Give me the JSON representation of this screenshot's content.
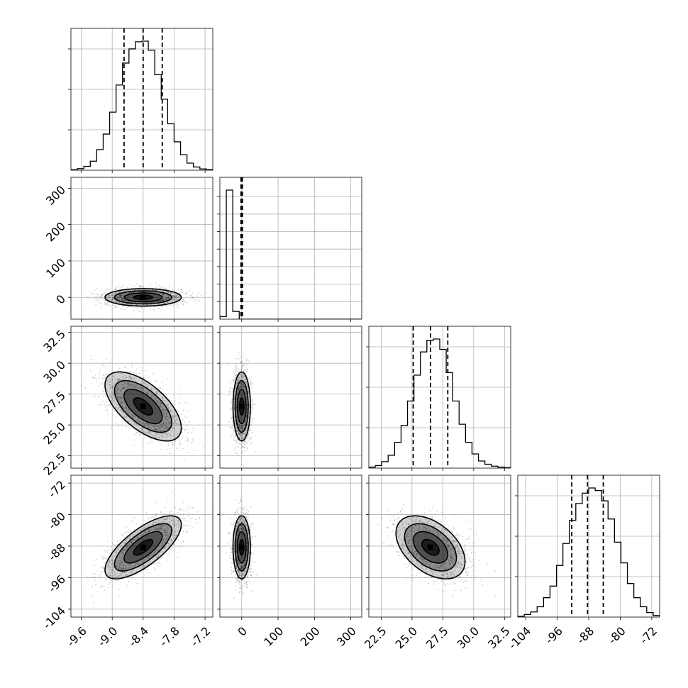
{
  "chart_data": {
    "type": "corner",
    "parameters": [
      {
        "range": [
          -9.8,
          -7.05
        ],
        "ticks": [
          "-9.6",
          "-9.0",
          "-8.4",
          "-7.8",
          "-7.2"
        ],
        "tick_values": [
          -9.6,
          -9.0,
          -8.4,
          -7.8,
          -7.2
        ],
        "median": -8.4,
        "q16": -8.77,
        "q84": -8.03,
        "std": 0.37
      },
      {
        "range": [
          -60,
          330
        ],
        "ticks": [
          "0",
          "100",
          "200",
          "300"
        ],
        "tick_values": [
          0,
          100,
          200,
          300
        ],
        "median": 0,
        "q16": -2,
        "q84": 2,
        "std": 12
      },
      {
        "range": [
          21.5,
          33
        ],
        "ticks": [
          "22.5",
          "25.0",
          "27.5",
          "30.0",
          "32.5"
        ],
        "tick_values": [
          22.5,
          25.0,
          27.5,
          30.0,
          32.5
        ],
        "median": 26.5,
        "q16": 25.1,
        "q84": 27.9,
        "std": 1.4
      },
      {
        "range": [
          -106,
          -70
        ],
        "ticks": [
          "-104",
          "-96",
          "-88",
          "-80",
          "-72"
        ],
        "tick_values": [
          -104,
          -96,
          -88,
          -80,
          -72
        ],
        "median": -88.3,
        "q16": -92.3,
        "q84": -84.3,
        "std": 4.0
      }
    ],
    "correlations": [
      [
        1,
        0,
        -0.62,
        0.72
      ],
      [
        0,
        1,
        0,
        0
      ],
      [
        -0.62,
        0,
        1,
        -0.45
      ],
      [
        0.72,
        0,
        -0.45,
        1
      ]
    ],
    "histograms": [
      [
        0.004,
        0.012,
        0.03,
        0.07,
        0.16,
        0.28,
        0.45,
        0.66,
        0.83,
        0.94,
        0.995,
        1.0,
        0.93,
        0.74,
        0.55,
        0.36,
        0.22,
        0.12,
        0.055,
        0.025,
        0.01,
        0.005
      ],
      [
        0.02,
        1.0,
        0.06,
        0,
        0,
        0,
        0,
        0,
        0,
        0,
        0,
        0,
        0,
        0,
        0,
        0,
        0,
        0,
        0,
        0,
        0,
        0
      ],
      [
        0.008,
        0.02,
        0.05,
        0.1,
        0.2,
        0.33,
        0.52,
        0.72,
        0.9,
        0.99,
        1.0,
        0.92,
        0.74,
        0.52,
        0.34,
        0.2,
        0.11,
        0.055,
        0.03,
        0.015,
        0.008,
        0.004
      ],
      [
        0.006,
        0.02,
        0.04,
        0.08,
        0.15,
        0.24,
        0.4,
        0.57,
        0.75,
        0.88,
        0.96,
        1.0,
        0.98,
        0.9,
        0.76,
        0.58,
        0.42,
        0.26,
        0.15,
        0.08,
        0.035,
        0.012
      ]
    ],
    "hist_yticks": [
      [
        0.3,
        0.6,
        0.9
      ],
      [
        0.13,
        0.26,
        0.39,
        0.52,
        0.65,
        0.78,
        0.91
      ],
      [
        0.3,
        0.6,
        0.9
      ],
      [
        0.3,
        0.6,
        0.9
      ]
    ],
    "contour_levels": [
      0.5,
      1.0,
      1.5,
      2.0
    ],
    "grid": true
  }
}
